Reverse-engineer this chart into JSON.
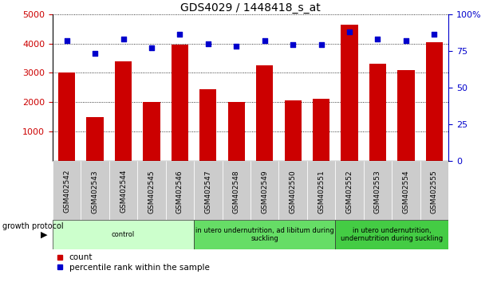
{
  "title": "GDS4029 / 1448418_s_at",
  "samples": [
    "GSM402542",
    "GSM402543",
    "GSM402544",
    "GSM402545",
    "GSM402546",
    "GSM402547",
    "GSM402548",
    "GSM402549",
    "GSM402550",
    "GSM402551",
    "GSM402552",
    "GSM402553",
    "GSM402554",
    "GSM402555"
  ],
  "counts": [
    3000,
    1500,
    3400,
    2000,
    3950,
    2450,
    2000,
    3250,
    2050,
    2100,
    4650,
    3300,
    3100,
    4050
  ],
  "percentiles": [
    82,
    73,
    83,
    77,
    86,
    80,
    78,
    82,
    79,
    79,
    88,
    83,
    82,
    86
  ],
  "bar_color": "#cc0000",
  "dot_color": "#0000cc",
  "ylim_left": [
    0,
    5000
  ],
  "ylim_right": [
    0,
    100
  ],
  "yticks_left": [
    1000,
    2000,
    3000,
    4000,
    5000
  ],
  "yticks_right": [
    0,
    25,
    50,
    75,
    100
  ],
  "groups": [
    {
      "label": "control",
      "start": 0,
      "end": 5,
      "color": "#ccffcc"
    },
    {
      "label": "in utero undernutrition, ad libitum during\nsuckling",
      "start": 5,
      "end": 10,
      "color": "#66dd66"
    },
    {
      "label": "in utero undernutrition,\nundernutrition during suckling",
      "start": 10,
      "end": 14,
      "color": "#44cc44"
    }
  ],
  "growth_protocol_label": "growth protocol",
  "legend_count_label": "count",
  "legend_pct_label": "percentile rank within the sample",
  "title_fontsize": 10,
  "tick_label_fontsize": 6.5,
  "axis_tick_fontsize": 8,
  "axis_label_color_left": "#cc0000",
  "axis_label_color_right": "#0000cc",
  "grid_color": "#000000",
  "bg_color": "#ffffff",
  "cell_gray": "#cccccc"
}
